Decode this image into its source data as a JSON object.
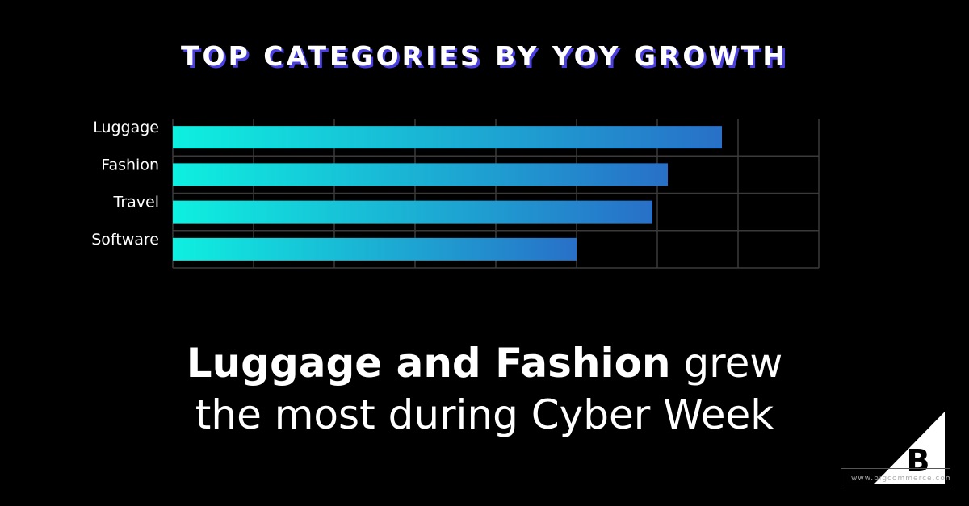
{
  "chart_data": {
    "type": "bar",
    "orientation": "horizontal",
    "title": "TOP CATEGORIES BY YOY GROWTH",
    "categories": [
      "Luggage",
      "Fashion",
      "Travel",
      "Software"
    ],
    "values": [
      6.8,
      6.13,
      5.94,
      5.0
    ],
    "xlim": [
      0,
      8
    ],
    "xlabel": "",
    "ylabel": "",
    "grid": true,
    "bar_gradient": [
      "#0ef0e0",
      "#2870c8"
    ]
  },
  "headline": {
    "bold": "Luggage and Fashion",
    "light_1": " grew",
    "line_2": "the most during Cyber Week"
  },
  "footer": {
    "url": "www.bigcommerce.com",
    "logo_icon": "bigcommerce-logo-icon"
  }
}
